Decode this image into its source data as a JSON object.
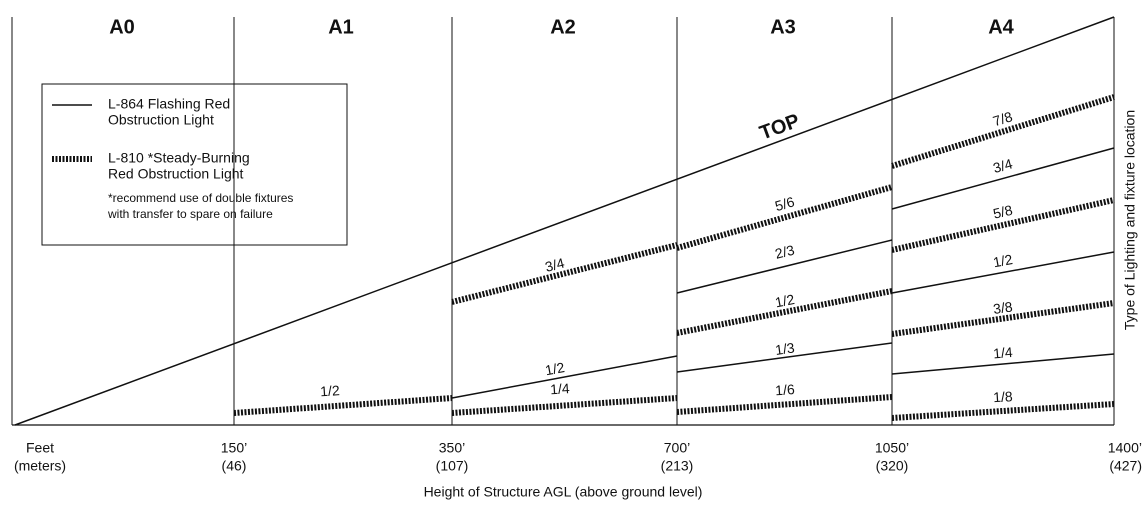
{
  "zones": [
    "A0",
    "A1",
    "A2",
    "A3",
    "A4"
  ],
  "legend": {
    "solid": [
      "L-864 Flashing Red",
      "Obstruction Light"
    ],
    "dashed": [
      "L-810 *Steady-Burning",
      "Red Obstruction Light"
    ],
    "note": [
      "*recommend use of double fixtures",
      "with transfer to spare on failure"
    ]
  },
  "top_label": "TOP",
  "segments": [
    {
      "label": "1/2"
    },
    {
      "label": "1/4"
    },
    {
      "label": "1/2"
    },
    {
      "label": "3/4"
    },
    {
      "label": "1/6"
    },
    {
      "label": "1/3"
    },
    {
      "label": "1/2"
    },
    {
      "label": "2/3"
    },
    {
      "label": "5/6"
    },
    {
      "label": "1/8"
    },
    {
      "label": "1/4"
    },
    {
      "label": "3/8"
    },
    {
      "label": "1/2"
    },
    {
      "label": "5/8"
    },
    {
      "label": "3/4"
    },
    {
      "label": "7/8"
    }
  ],
  "ticks": [
    {
      "feet": "Feet",
      "meters": "(meters)"
    },
    {
      "feet": "150’",
      "meters": "(46)"
    },
    {
      "feet": "350’",
      "meters": "(107)"
    },
    {
      "feet": "700’",
      "meters": "(213)"
    },
    {
      "feet": "1050’",
      "meters": "(320)"
    },
    {
      "feet": "1400’",
      "meters": "(427)"
    }
  ],
  "axis_title": "Height of Structure AGL (above ground level)",
  "side_label": "Type of Lighting and fixture location"
}
